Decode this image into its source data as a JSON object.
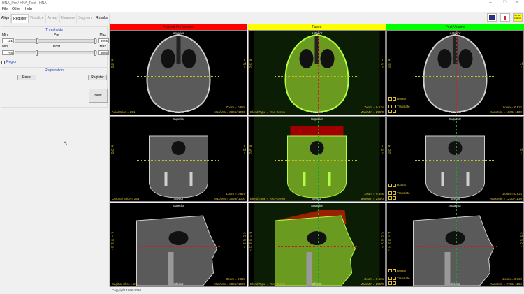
{
  "window": {
    "title": "HNA_Pre / HNA_Post - HNA"
  },
  "menu": [
    "File",
    "Other",
    "Help"
  ],
  "tabs": [
    {
      "label": "Align",
      "state": "normal"
    },
    {
      "label": "Register",
      "state": "active"
    },
    {
      "label": "Visualize",
      "state": "disabled"
    },
    {
      "label": "Airway",
      "state": "disabled"
    },
    {
      "label": "Measure",
      "state": "disabled"
    },
    {
      "label": "Segment",
      "state": "disabled"
    },
    {
      "label": "Results",
      "state": "normal"
    }
  ],
  "thresholds": {
    "title": "Thresholds",
    "pre": {
      "label": "Pre",
      "min_label": "Min",
      "max_label": "Max",
      "min": "121",
      "max": "3095",
      "position": 0.3
    },
    "post": {
      "label": "Post",
      "min_label": "Min",
      "max_label": "Max",
      "min": "-46",
      "max": "3095",
      "position": 0.29
    }
  },
  "region": {
    "label": "Region",
    "checked": false
  },
  "registration": {
    "title": "Registration",
    "reset": "Reset",
    "register": "Register"
  },
  "next": "Next",
  "columns": [
    {
      "title": "Aligned Pre Volume",
      "color": "#ff0000"
    },
    {
      "title": "Fused",
      "color": "#ffff00"
    },
    {
      "title": "Post Volume",
      "color": "#00ff00"
    }
  ],
  "controls": {
    "rotate": "Rotate",
    "translate": "Translate"
  },
  "rows": [
    {
      "top": "Anterior",
      "bottom": "Posterior",
      "left": "Right",
      "right": "Left",
      "slice": "Axial Slice = 251",
      "orient": "axial",
      "cells": [
        {
          "zoom": "Zoom = 0.62x",
          "maxmin": "Max/Min = 3095/-1000"
        },
        {
          "zoom": "Zoom = 0.62x",
          "maxmin": "Max/Min = 255/0",
          "blend": "Blend Type = Red-Green"
        },
        {
          "zoom": "Zoom = 0.62x",
          "maxmin": "Max/Min = 1589/-1130"
        }
      ]
    },
    {
      "top": "Superior",
      "bottom": "Inferior",
      "left": "Right",
      "right": "Left",
      "slice": "Coronal Slice = 251",
      "orient": "coronal",
      "cells": [
        {
          "zoom": "Zoom = 0.62x",
          "maxmin": "Max/Min = 3095/-1000"
        },
        {
          "zoom": "Zoom = 0.58x",
          "maxmin": "Max/Min = 255/0",
          "blend": "Blend Type = Red-Green"
        },
        {
          "zoom": "Zoom = 0.62x",
          "maxmin": "Max/Min = 1230/-1130"
        }
      ]
    },
    {
      "top": "Superior",
      "bottom": "Inferior",
      "left": "Posterior",
      "right": "Anterior",
      "slice": "Sagittal Slice = 251",
      "orient": "sagittal",
      "cells": [
        {
          "zoom": "Zoom = 0.62x",
          "maxmin": "Max/Min = 3095/-1000"
        },
        {
          "zoom": "Zoom = 0.62x",
          "maxmin": "Max/Min = 255/0",
          "blend": "Blend Type = Red-Green"
        },
        {
          "zoom": "Zoom = 0.62x",
          "maxmin": "Max/Min = 2706/-1186"
        }
      ]
    }
  ],
  "toolbar_icons": [
    "monitor-icon",
    "settings-icon",
    "notes-icon"
  ],
  "notes_label": "NOTES CHECK",
  "copyright": "Copyright 1986-2020"
}
